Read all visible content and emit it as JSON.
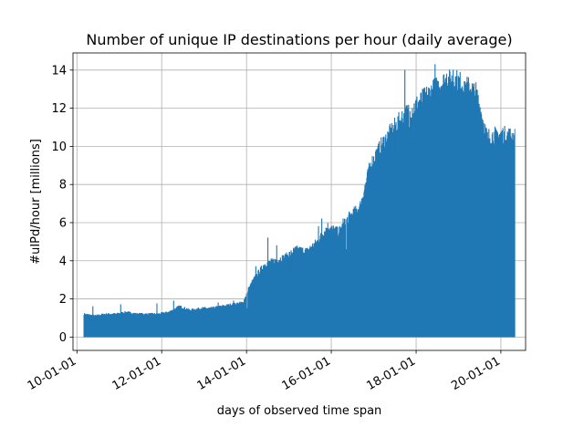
{
  "chart_data": {
    "type": "area",
    "title": "Number of unique IP destinations per hour (daily average)",
    "xlabel": "days of observed time span",
    "ylabel": "#uIPd/hour [millions]",
    "xlim": [
      "2009-11-28",
      "2020-08-01"
    ],
    "ylim": [
      -0.7,
      14.9
    ],
    "x_ticks": [
      "10-01-01",
      "12-01-01",
      "14-01-01",
      "16-01-01",
      "18-01-01",
      "20-01-01"
    ],
    "x_tick_dates": [
      "2010-01-01",
      "2012-01-01",
      "2014-01-01",
      "2016-01-01",
      "2018-01-01",
      "2020-01-01"
    ],
    "y_ticks": [
      0,
      2,
      4,
      6,
      8,
      10,
      12,
      14
    ],
    "grid": true,
    "color": "#1f77b4",
    "series": [
      {
        "x": [
          "2010-03-01",
          "2010-06-01",
          "2010-09-01",
          "2010-12-01",
          "2011-03-01",
          "2011-06-01",
          "2011-09-01",
          "2011-12-01",
          "2012-03-01",
          "2012-06-01",
          "2012-09-01",
          "2012-12-01",
          "2013-03-01",
          "2013-06-01",
          "2013-09-01",
          "2013-12-01",
          "2014-01-15",
          "2014-03-01",
          "2014-06-01",
          "2014-09-01",
          "2014-12-01",
          "2015-03-01",
          "2015-06-01",
          "2015-09-01",
          "2015-12-01",
          "2016-03-01",
          "2016-06-01",
          "2016-09-01",
          "2016-12-01",
          "2017-03-01",
          "2017-06-01",
          "2017-09-01",
          "2017-12-01",
          "2018-03-01",
          "2018-06-01",
          "2018-09-01",
          "2018-12-01",
          "2019-03-01",
          "2019-06-01",
          "2019-09-01",
          "2019-12-01",
          "2020-03-01",
          "2020-05-01"
        ],
        "values": [
          1.2,
          1.1,
          1.2,
          1.2,
          1.3,
          1.2,
          1.2,
          1.2,
          1.3,
          1.6,
          1.4,
          1.5,
          1.5,
          1.6,
          1.7,
          1.8,
          2.5,
          3.0,
          3.8,
          4.0,
          4.2,
          4.6,
          4.5,
          5.0,
          5.8,
          5.5,
          6.3,
          6.8,
          9.0,
          10.0,
          10.8,
          11.5,
          12.0,
          12.5,
          13.0,
          13.4,
          13.5,
          13.2,
          12.8,
          10.5,
          10.6,
          10.6,
          10.5
        ],
        "spikes": [
          [
            "2010-05-15",
            1.6
          ],
          [
            "2011-01-10",
            1.7
          ],
          [
            "2011-11-20",
            1.75
          ],
          [
            "2012-04-10",
            1.9
          ],
          [
            "2013-05-01",
            1.8
          ],
          [
            "2013-09-10",
            1.9
          ],
          [
            "2014-03-20",
            3.7
          ],
          [
            "2014-07-01",
            5.2
          ],
          [
            "2014-09-15",
            4.8
          ],
          [
            "2015-09-10",
            5.8
          ],
          [
            "2015-10-10",
            6.2
          ],
          [
            "2016-04-10",
            6.2
          ],
          [
            "2016-05-20",
            5.5
          ],
          [
            "2016-07-01",
            6.4
          ],
          [
            "2017-01-20",
            9.8
          ],
          [
            "2017-05-10",
            10.7
          ],
          [
            "2017-08-20",
            11.3
          ],
          [
            "2017-09-25",
            14.0
          ],
          [
            "2017-11-01",
            11.0
          ],
          [
            "2018-06-10",
            14.3
          ],
          [
            "2018-09-20",
            13.8
          ],
          [
            "2018-11-15",
            14.0
          ],
          [
            "2019-02-20",
            13.4
          ],
          [
            "2019-04-15",
            13.0
          ]
        ],
        "dips": [
          [
            "2010-09-01",
            1.0
          ],
          [
            "2011-07-01",
            1.0
          ],
          [
            "2012-07-20",
            1.0
          ],
          [
            "2014-01-05",
            1.5
          ],
          [
            "2014-05-20",
            2.3
          ],
          [
            "2015-01-15",
            3.3
          ],
          [
            "2016-01-10",
            5.0
          ],
          [
            "2016-05-10",
            4.6
          ],
          [
            "2016-09-20",
            5.7
          ],
          [
            "2017-07-01",
            9.5
          ],
          [
            "2017-12-10",
            10.1
          ],
          [
            "2018-01-10",
            9.9
          ],
          [
            "2019-09-10",
            9.4
          ],
          [
            "2019-11-20",
            9.7
          ]
        ]
      }
    ]
  }
}
